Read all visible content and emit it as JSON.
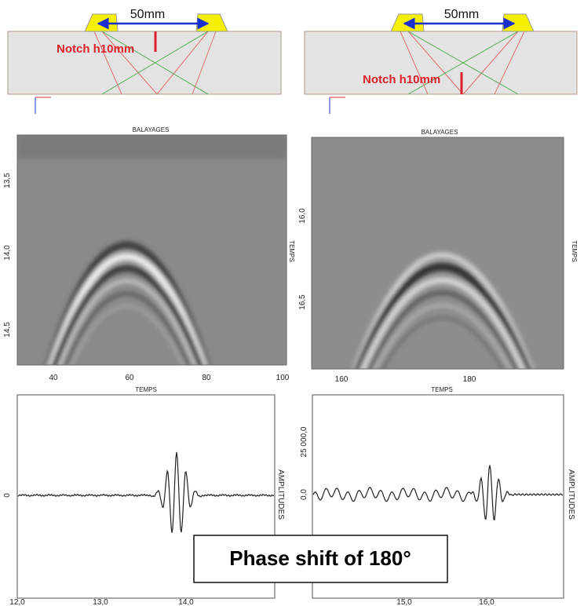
{
  "left": {
    "diagram": {
      "distance": "50mm",
      "notch": "Notch h10mm"
    },
    "bscan": {
      "title": "BALAYAGES",
      "axis": "TEMPS",
      "yticks": [
        "13,5",
        "14,0",
        "14,5"
      ],
      "xticks": [
        "40",
        "60",
        "80",
        "100"
      ]
    },
    "ascan": {
      "title": "TEMPS",
      "axis": "AMPLITUDES",
      "yticks": [
        "0"
      ],
      "xticks": [
        "12,0",
        "13,0",
        "14,0"
      ]
    }
  },
  "right": {
    "diagram": {
      "distance": "50mm",
      "notch": "Notch h10mm"
    },
    "bscan": {
      "title": "BALAYAGES",
      "axis": "TEMPS",
      "yticks": [
        "16,0",
        "16,5"
      ],
      "xticks": [
        "160",
        "180"
      ]
    },
    "ascan": {
      "title": "TEMPS",
      "axis": "AMPLITUDES",
      "yticks": [
        "25 000,0",
        "0,0"
      ],
      "xticks": [
        "15,0",
        "16,0"
      ]
    }
  },
  "caption": "Phase shift of 180°"
}
